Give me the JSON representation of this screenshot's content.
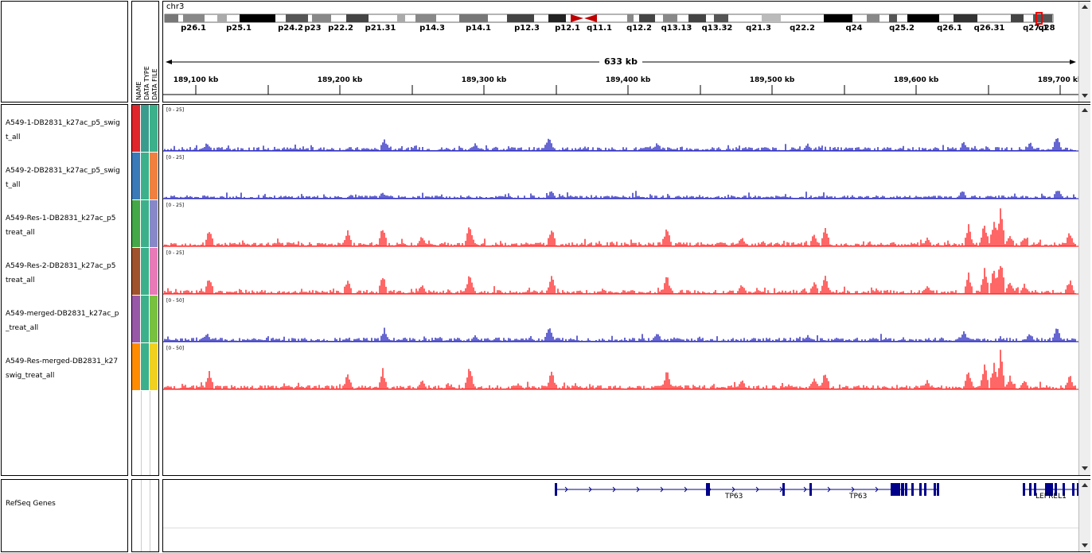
{
  "header": {
    "chromosome": "chr3",
    "span": "633 kb",
    "attr_headers": [
      "NAME",
      "DATA TYPE",
      "DATA FILE"
    ],
    "cytobands": [
      "p26.1",
      "p25.1",
      "p24.2",
      "p23",
      "p22.2",
      "p21.31",
      "p14.3",
      "p14.1",
      "p12.3",
      "p12.1",
      "q11.1",
      "q12.2",
      "q13.13",
      "q13.32",
      "q21.3",
      "q22.2",
      "q24",
      "q25.2",
      "q26.1",
      "q26.31",
      "q27.1",
      "q28"
    ],
    "ruler_ticks": [
      "189,100 kb",
      "189,200 kb",
      "189,300 kb",
      "189,400 kb",
      "189,500 kb",
      "189,600 kb",
      "189,700 kb"
    ]
  },
  "tracks": [
    {
      "name_line1": "A549-1-DB2831_k27ac_p5_swig",
      "name_line2": "t_all",
      "range": "[0 - 25]",
      "color": "#0000b4",
      "attr_colors": [
        "#e0262a",
        "#3a9c8c",
        "#3cb08a"
      ],
      "profile": "low"
    },
    {
      "name_line1": "A549-2-DB2831_k27ac_p5_swig",
      "name_line2": "t_all",
      "range": "[0 - 25]",
      "color": "#0000b4",
      "attr_colors": [
        "#3a7ab8",
        "#3cb08a",
        "#f08040"
      ],
      "profile": "lower"
    },
    {
      "name_line1": "A549-Res-1-DB2831_k27ac_p5",
      "name_line2": "treat_all",
      "range": "[0 - 25]",
      "color": "#ff0000",
      "attr_colors": [
        "#44a848",
        "#3cb08a",
        "#8888c8"
      ],
      "profile": "high"
    },
    {
      "name_line1": "A549-Res-2-DB2831_k27ac_p5",
      "name_line2": "treat_all",
      "range": "[0 - 25]",
      "color": "#ff0000",
      "attr_colors": [
        "#a0522d",
        "#3cb08a",
        "#e87ab8"
      ],
      "profile": "high"
    },
    {
      "name_line1": "A549-merged-DB2831_k27ac_p",
      "name_line2": "_treat_all",
      "range": "[0 - 50]",
      "color": "#0000b4",
      "attr_colors": [
        "#9858a8",
        "#3cb08a",
        "#78c040"
      ],
      "profile": "low"
    },
    {
      "name_line1": "A549-Res-merged-DB2831_k27",
      "name_line2": "swig_treat_all",
      "range": "[0 - 50]",
      "color": "#ff0000",
      "attr_colors": [
        "#ff8c00",
        "#3cb08a",
        "#f0d020"
      ],
      "profile": "high"
    }
  ],
  "genes_track": {
    "name": "RefSeq Genes",
    "labels": [
      "TP63",
      "TP63",
      "LEPREL1"
    ]
  }
}
